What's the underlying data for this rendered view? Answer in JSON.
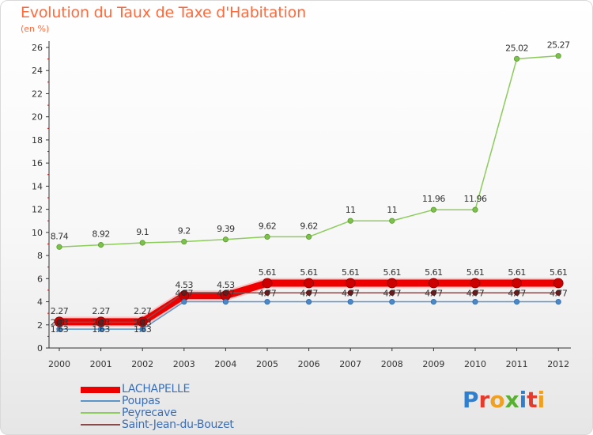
{
  "header": {
    "title": "Evolution du Taux de Taxe d'Habitation",
    "subtitle": "(en %)"
  },
  "logo": {
    "text": "Proxiti",
    "colors": [
      "#2f7fd0",
      "#e63a2a",
      "#f0a020",
      "#58b030",
      "#2f7fd0",
      "#e63a2a",
      "#f0a020"
    ]
  },
  "chart_data": {
    "type": "line",
    "title": "Evolution du Taux de Taxe d'Habitation",
    "subtitle": "(en %)",
    "xlabel": "",
    "ylabel": "",
    "x": [
      "2000",
      "2001",
      "2002",
      "2003",
      "2004",
      "2005",
      "2006",
      "2007",
      "2008",
      "2009",
      "2010",
      "2011",
      "2012"
    ],
    "ylim": [
      0,
      26
    ],
    "yticks": [
      0,
      2,
      4,
      6,
      8,
      10,
      12,
      14,
      16,
      18,
      20,
      22,
      24,
      26
    ],
    "grid": false,
    "legend_position": "bottom-left",
    "series": [
      {
        "name": "LACHAPELLE",
        "color": "#ee0000",
        "values": [
          2.27,
          2.27,
          2.27,
          4.53,
          4.53,
          5.61,
          5.61,
          5.61,
          5.61,
          5.61,
          5.61,
          5.61,
          5.61
        ],
        "labels": [
          "2.27",
          "2.27",
          "2.27",
          "4.53",
          "4.53",
          "5.61",
          "5.61",
          "5.61",
          "5.61",
          "5.61",
          "5.61",
          "5.61",
          "5.61"
        ]
      },
      {
        "name": "Poupas",
        "color": "#5b95c8",
        "values": [
          1.63,
          1.63,
          1.63,
          4.0,
          4.0,
          4.0,
          4.0,
          4.0,
          4.0,
          4.0,
          4.0,
          4.0,
          4.0
        ],
        "labels": [
          "1.63",
          "1.63",
          "1.63",
          "",
          "",
          "",
          "",
          "",
          "",
          "",
          "",
          "",
          ""
        ]
      },
      {
        "name": "Peyrecave",
        "color": "#8ccc5a",
        "values": [
          8.74,
          8.92,
          9.1,
          9.2,
          9.39,
          9.62,
          9.62,
          11,
          11,
          11.96,
          11.96,
          25.02,
          25.27
        ],
        "labels": [
          "8.74",
          "8.92",
          "9.1",
          "9.2",
          "9.39",
          "9.62",
          "9.62",
          "11",
          "11",
          "11.96",
          "11.96",
          "25.02",
          "25.27"
        ]
      },
      {
        "name": "Saint-Jean-du-Bouzet",
        "color": "#8a4a4a",
        "values": [
          2.23,
          2.23,
          2.23,
          4.77,
          4.77,
          4.77,
          4.77,
          4.77,
          4.77,
          4.77,
          4.77,
          4.77,
          4.77
        ],
        "labels": [
          "2.23",
          "2.23",
          "2.23",
          "4.77",
          "4.77",
          "4.77",
          "4.77",
          "4.77",
          "4.77",
          "4.77",
          "4.77",
          "4.77",
          "4.77"
        ]
      }
    ]
  }
}
